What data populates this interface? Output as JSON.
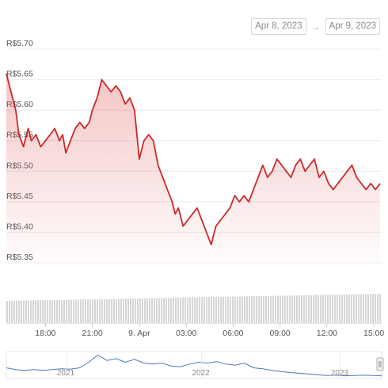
{
  "date_range": {
    "from": "Apr 8, 2023",
    "arrow": "→",
    "to": "Apr 9, 2023"
  },
  "chart_data": {
    "type": "line",
    "y_ticks": [
      "R$5.70",
      "R$5.65",
      "R$5.60",
      "R$5.55",
      "R$5.50",
      "R$5.45",
      "R$5.40",
      "R$5.35"
    ],
    "ylim": [
      5.35,
      5.7
    ],
    "x_ticks": [
      "18:00",
      "21:00",
      "9. Apr",
      "03:00",
      "06:00",
      "09:00",
      "12:00",
      "15:00"
    ],
    "x_tick_hours": [
      18,
      21,
      24,
      27,
      30,
      33,
      36,
      39
    ],
    "xlim_hours": [
      15.5,
      39.5
    ],
    "grid": true,
    "legend": "none",
    "line_color": "#cc2a2a",
    "series": [
      {
        "x_hours": [
          15.5,
          15.8,
          16.1,
          16.3,
          16.6,
          16.9,
          17.1,
          17.4,
          17.7,
          18.0,
          18.3,
          18.6,
          18.9,
          19.1,
          19.3,
          19.6,
          19.9,
          20.2,
          20.5,
          20.8,
          21.0,
          21.3,
          21.6,
          21.9,
          22.2,
          22.5,
          22.8,
          23.1,
          23.4,
          23.7,
          24.0,
          24.3,
          24.6,
          24.9,
          25.2,
          25.5,
          25.8,
          26.1,
          26.3,
          26.5,
          26.8,
          27.1,
          27.4,
          27.7,
          28.0,
          28.3,
          28.6,
          28.9,
          29.2,
          29.5,
          29.8,
          30.1,
          30.4,
          30.7,
          31.0,
          31.3,
          31.6,
          31.9,
          32.2,
          32.5,
          32.8,
          33.1,
          33.4,
          33.7,
          34.0,
          34.3,
          34.6,
          34.9,
          35.2,
          35.5,
          35.8,
          36.1,
          36.4,
          36.7,
          37.0,
          37.3,
          37.6,
          37.9,
          38.2,
          38.5,
          38.8,
          39.1,
          39.4
        ],
        "values": [
          5.66,
          5.63,
          5.6,
          5.56,
          5.54,
          5.57,
          5.55,
          5.56,
          5.54,
          5.55,
          5.56,
          5.57,
          5.55,
          5.56,
          5.53,
          5.55,
          5.57,
          5.58,
          5.57,
          5.58,
          5.6,
          5.62,
          5.65,
          5.64,
          5.63,
          5.64,
          5.63,
          5.61,
          5.62,
          5.6,
          5.52,
          5.55,
          5.56,
          5.55,
          5.51,
          5.49,
          5.47,
          5.45,
          5.43,
          5.44,
          5.41,
          5.42,
          5.43,
          5.44,
          5.42,
          5.4,
          5.38,
          5.41,
          5.42,
          5.43,
          5.44,
          5.46,
          5.45,
          5.46,
          5.45,
          5.47,
          5.49,
          5.51,
          5.49,
          5.5,
          5.52,
          5.51,
          5.5,
          5.49,
          5.51,
          5.52,
          5.5,
          5.51,
          5.52,
          5.49,
          5.5,
          5.48,
          5.47,
          5.48,
          5.49,
          5.5,
          5.51,
          5.49,
          5.48,
          5.47,
          5.48,
          5.47,
          5.48
        ]
      }
    ],
    "navigator": {
      "labels": [
        "2021",
        "2022",
        "2023"
      ],
      "label_positions": [
        0.16,
        0.52,
        0.89
      ],
      "values": [
        5.35,
        5.3,
        5.28,
        5.3,
        5.28,
        5.3,
        5.32,
        5.31,
        5.35,
        5.5,
        5.7,
        5.55,
        5.6,
        5.5,
        5.58,
        5.48,
        5.45,
        5.48,
        5.4,
        5.38,
        5.45,
        5.5,
        5.48,
        5.52,
        5.45,
        5.42,
        5.48,
        5.35,
        5.32,
        5.28,
        5.25,
        5.22,
        5.2,
        5.18,
        5.16,
        5.14,
        5.15,
        5.13,
        5.14,
        5.15,
        5.14,
        5.13
      ]
    }
  }
}
